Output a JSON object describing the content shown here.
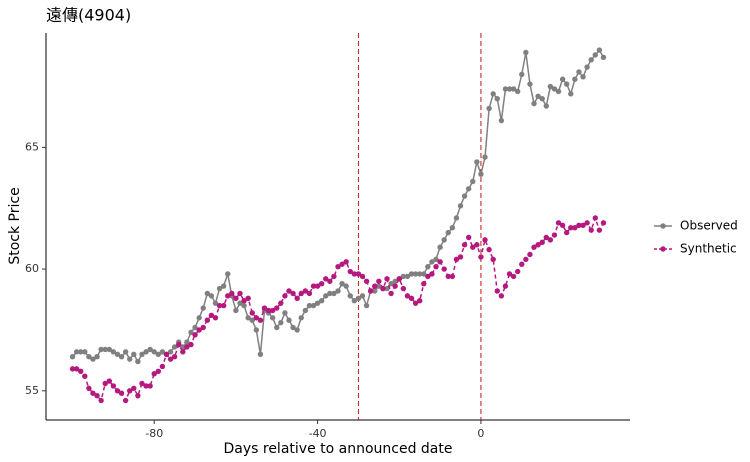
{
  "chart_data": {
    "type": "line",
    "title": "遠傳(4904)",
    "x_label": "Days relative to announced date",
    "y_label": "Stock Price",
    "x": [
      -100,
      -99,
      -98,
      -97,
      -96,
      -95,
      -94,
      -93,
      -92,
      -91,
      -90,
      -89,
      -88,
      -87,
      -86,
      -85,
      -84,
      -83,
      -82,
      -81,
      -80,
      -79,
      -78,
      -77,
      -76,
      -75,
      -74,
      -73,
      -72,
      -71,
      -70,
      -69,
      -68,
      -67,
      -66,
      -65,
      -64,
      -63,
      -62,
      -61,
      -60,
      -59,
      -58,
      -57,
      -56,
      -55,
      -54,
      -53,
      -52,
      -51,
      -50,
      -49,
      -48,
      -47,
      -46,
      -45,
      -44,
      -43,
      -42,
      -41,
      -40,
      -39,
      -38,
      -37,
      -36,
      -35,
      -34,
      -33,
      -32,
      -31,
      -30,
      -29,
      -28,
      -27,
      -26,
      -25,
      -24,
      -23,
      -22,
      -21,
      -20,
      -19,
      -18,
      -17,
      -16,
      -15,
      -14,
      -13,
      -12,
      -11,
      -10,
      -9,
      -8,
      -7,
      -6,
      -5,
      -4,
      -3,
      -2,
      -1,
      0,
      1,
      2,
      3,
      4,
      5,
      6,
      7,
      8,
      9,
      10,
      11,
      12,
      13,
      14,
      15,
      16,
      17,
      18,
      19,
      20,
      21,
      22,
      23,
      24,
      25,
      26,
      27,
      28,
      29,
      30
    ],
    "series": [
      {
        "name": "Observed",
        "color": "#808080",
        "dash": false,
        "values": [
          56.4,
          56.6,
          56.6,
          56.6,
          56.4,
          56.3,
          56.4,
          56.7,
          56.7,
          56.7,
          56.6,
          56.5,
          56.4,
          56.6,
          56.3,
          56.5,
          56.2,
          56.5,
          56.6,
          56.7,
          56.6,
          56.5,
          56.6,
          56.5,
          56.6,
          56.8,
          57.0,
          56.8,
          57.0,
          57.4,
          57.6,
          58.0,
          58.4,
          59.0,
          58.9,
          58.6,
          59.2,
          59.3,
          59.8,
          58.9,
          58.3,
          58.6,
          58.5,
          58.0,
          57.9,
          57.5,
          56.5,
          58.3,
          58.2,
          58.0,
          57.6,
          57.8,
          58.2,
          57.9,
          57.6,
          57.5,
          58.0,
          58.3,
          58.5,
          58.5,
          58.6,
          58.7,
          58.9,
          59.0,
          59.0,
          59.1,
          59.4,
          59.3,
          58.9,
          58.7,
          58.8,
          58.9,
          58.5,
          59.1,
          59.1,
          59.3,
          59.2,
          59.2,
          59.4,
          59.5,
          59.6,
          59.7,
          59.7,
          59.8,
          59.8,
          59.8,
          59.8,
          60.1,
          60.3,
          60.4,
          60.9,
          61.2,
          61.5,
          61.7,
          62.1,
          62.6,
          63.0,
          63.3,
          63.6,
          64.4,
          63.9,
          64.6,
          66.6,
          67.2,
          67.0,
          66.1,
          67.4,
          67.4,
          67.4,
          67.3,
          68.0,
          68.9,
          67.6,
          66.8,
          67.1,
          67.0,
          66.7,
          67.5,
          67.4,
          67.3,
          67.8,
          67.6,
          67.2,
          67.8,
          68.1,
          67.9,
          68.3,
          68.6,
          68.8,
          69.0,
          68.7
        ]
      },
      {
        "name": "Synthetic",
        "color": "#b5187f",
        "dash": true,
        "values": [
          55.9,
          55.9,
          55.8,
          55.6,
          55.1,
          54.9,
          54.8,
          54.6,
          55.3,
          55.4,
          55.2,
          55.0,
          54.9,
          54.6,
          55.0,
          55.1,
          54.8,
          55.3,
          55.2,
          55.2,
          55.7,
          55.8,
          56.0,
          56.5,
          56.3,
          56.4,
          56.9,
          56.6,
          56.8,
          56.9,
          57.3,
          57.5,
          57.6,
          57.9,
          58.1,
          58.0,
          58.5,
          58.5,
          58.9,
          59.0,
          58.8,
          59.0,
          58.7,
          58.8,
          58.2,
          58.0,
          57.9,
          58.4,
          58.3,
          58.3,
          58.4,
          58.6,
          58.9,
          59.1,
          59.0,
          58.8,
          59.0,
          59.1,
          59.0,
          59.3,
          59.3,
          59.4,
          59.6,
          59.5,
          59.7,
          60.1,
          60.2,
          60.3,
          59.9,
          59.8,
          59.8,
          59.7,
          59.5,
          59.1,
          59.3,
          59.5,
          59.2,
          59.6,
          59.0,
          59.3,
          59.6,
          59.2,
          58.9,
          58.8,
          58.6,
          58.7,
          59.4,
          59.7,
          59.8,
          60.1,
          60.3,
          60.0,
          59.7,
          59.7,
          60.4,
          60.5,
          61.0,
          61.3,
          60.9,
          61.0,
          60.5,
          61.2,
          60.8,
          60.4,
          59.1,
          58.9,
          59.3,
          59.8,
          59.7,
          59.9,
          60.2,
          60.4,
          60.6,
          60.9,
          61.0,
          61.1,
          61.3,
          61.2,
          61.4,
          61.9,
          61.8,
          61.5,
          61.7,
          61.7,
          61.8,
          61.8,
          61.9,
          61.6,
          62.1,
          61.6,
          61.9
        ]
      }
    ],
    "vlines": [
      -30,
      0
    ],
    "vline_color": "#cc1111",
    "xlim": [
      -106.5,
      36.5
    ],
    "xticks": [
      -80,
      -40,
      0
    ],
    "ylim": [
      53.8,
      69.7
    ],
    "yticks": [
      55,
      60,
      65
    ],
    "grid": false,
    "legend": "right"
  }
}
